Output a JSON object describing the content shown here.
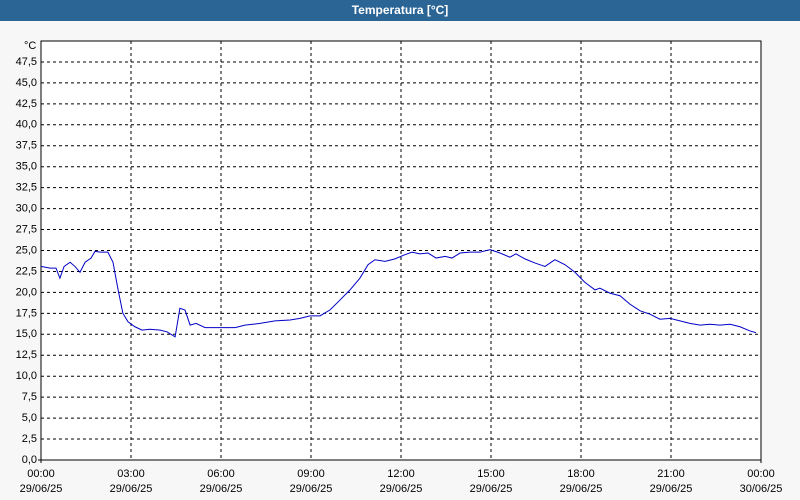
{
  "chart_data": {
    "type": "line",
    "title": "Temperatura [°C]",
    "y_label": "°C",
    "x": [
      0,
      0.3,
      0.5,
      0.63,
      0.77,
      0.97,
      1.13,
      1.3,
      1.47,
      1.67,
      1.8,
      1.97,
      2.23,
      2.4,
      2.57,
      2.73,
      2.9,
      3.13,
      3.37,
      3.63,
      3.97,
      4.2,
      4.47,
      4.63,
      4.8,
      4.97,
      5.17,
      5.47,
      5.97,
      6.47,
      6.8,
      7.3,
      7.8,
      8.3,
      8.63,
      8.97,
      9.3,
      9.63,
      9.97,
      10.3,
      10.63,
      10.9,
      11.13,
      11.47,
      11.8,
      12.13,
      12.37,
      12.63,
      12.9,
      13.17,
      13.47,
      13.7,
      13.97,
      14.3,
      14.63,
      14.97,
      15.3,
      15.63,
      15.83,
      16.13,
      16.47,
      16.8,
      17.13,
      17.47,
      17.8,
      18.13,
      18.47,
      18.63,
      18.97,
      19.3,
      19.63,
      19.97,
      20.3,
      20.63,
      20.97,
      21.3,
      21.63,
      21.97,
      22.3,
      22.63,
      22.97,
      23.3,
      23.63,
      23.83
    ],
    "series": [
      {
        "color": "#0000c8",
        "values": [
          23.1,
          22.9,
          22.9,
          21.7,
          23.1,
          23.6,
          23.1,
          22.4,
          23.6,
          24.1,
          24.9,
          24.8,
          24.8,
          23.6,
          20.3,
          17.5,
          16.5,
          15.9,
          15.5,
          15.6,
          15.5,
          15.3,
          14.7,
          18.1,
          17.9,
          16.1,
          16.3,
          15.8,
          15.8,
          15.8,
          16.1,
          16.3,
          16.6,
          16.7,
          16.9,
          17.2,
          17.2,
          17.9,
          19.1,
          20.3,
          21.7,
          23.3,
          23.9,
          23.7,
          24.0,
          24.5,
          24.8,
          24.6,
          24.7,
          24.1,
          24.3,
          24.1,
          24.7,
          24.8,
          24.8,
          25.1,
          24.7,
          24.2,
          24.6,
          24.0,
          23.5,
          23.1,
          23.9,
          23.3,
          22.4,
          21.2,
          20.3,
          20.5,
          19.9,
          19.6,
          18.6,
          17.8,
          17.4,
          16.8,
          16.9,
          16.6,
          16.3,
          16.1,
          16.2,
          16.1,
          16.2,
          15.9,
          15.4,
          15.2
        ]
      }
    ],
    "xlim": [
      0,
      24
    ],
    "xticks": [
      {
        "value": 0,
        "label": "00:00\n29/06/25"
      },
      {
        "value": 3,
        "label": "03:00\n29/06/25"
      },
      {
        "value": 6,
        "label": "06:00\n29/06/25"
      },
      {
        "value": 9,
        "label": "09:00\n29/06/25"
      },
      {
        "value": 12,
        "label": "12:00\n29/06/25"
      },
      {
        "value": 15,
        "label": "15:00\n29/06/25"
      },
      {
        "value": 18,
        "label": "18:00\n29/06/25"
      },
      {
        "value": 21,
        "label": "21:00\n29/06/25"
      },
      {
        "value": 24,
        "label": "00:00\n30/06/25"
      }
    ],
    "ylim": [
      0,
      50
    ],
    "yticks": [
      {
        "value": 0,
        "label": "0,0"
      },
      {
        "value": 2.5,
        "label": "2,5"
      },
      {
        "value": 5,
        "label": "5,0"
      },
      {
        "value": 7.5,
        "label": "7,5"
      },
      {
        "value": 10,
        "label": "10,0"
      },
      {
        "value": 12.5,
        "label": "12,5"
      },
      {
        "value": 15,
        "label": "15,0"
      },
      {
        "value": 17.5,
        "label": "17,5"
      },
      {
        "value": 20,
        "label": "20,0"
      },
      {
        "value": 22.5,
        "label": "22,5"
      },
      {
        "value": 25,
        "label": "25,0"
      },
      {
        "value": 27.5,
        "label": "27,5"
      },
      {
        "value": 30,
        "label": "30,0"
      },
      {
        "value": 32.5,
        "label": "32,5"
      },
      {
        "value": 35,
        "label": "35,0"
      },
      {
        "value": 37.5,
        "label": "37,5"
      },
      {
        "value": 40,
        "label": "40,0"
      },
      {
        "value": 42.5,
        "label": "42,5"
      },
      {
        "value": 45,
        "label": "45,0"
      },
      {
        "value": 47.5,
        "label": "47,5"
      }
    ],
    "grid": true
  }
}
